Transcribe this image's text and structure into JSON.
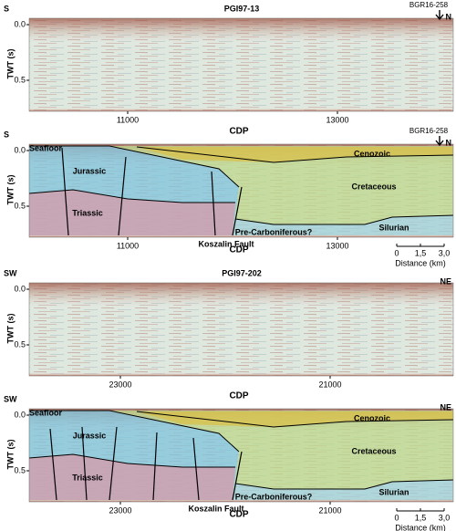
{
  "panels": [
    {
      "left": "S",
      "title": "PGI97-13",
      "right": "N",
      "well": "BGR16-258",
      "y_label": "TWT (s)",
      "y_ticks": [
        "0.0",
        "0.5"
      ],
      "x_ticks": [
        "11000",
        "13000"
      ],
      "x_label": "CDP"
    },
    {
      "left": "S",
      "right": "N",
      "well": "BGR16-258",
      "y_label": "TWT (s)",
      "y_ticks": [
        "0.0",
        "0.5"
      ],
      "x_ticks": [
        "11000",
        "13000"
      ],
      "x_label": "CDP",
      "units": {
        "seafloor": "Seafloor",
        "jurassic": "Jurassic",
        "triassic": "Triassic",
        "cenozoic": "Cenozoic",
        "cretaceous": "Cretaceous",
        "silurian": "Silurian",
        "pre_carboniferous": "Pre-Carboniferous?",
        "fault": "Koszalin Fault"
      },
      "scale_bar": {
        "ticks": [
          "0",
          "1,5",
          "3,0"
        ],
        "label": "Distance (km)"
      }
    },
    {
      "left": "SW",
      "title": "PGI97-202",
      "right": "NE",
      "y_label": "TWT (s)",
      "y_ticks": [
        "0.0",
        "0.5"
      ],
      "x_ticks": [
        "23000",
        "21000"
      ],
      "x_label": "CDP"
    },
    {
      "left": "SW",
      "right": "NE",
      "y_label": "TWT (s)",
      "y_ticks": [
        "0.0",
        "0.5"
      ],
      "x_ticks": [
        "23000",
        "21000"
      ],
      "x_label": "CDP",
      "units": {
        "seafloor": "Seafloor",
        "jurassic": "Jurassic",
        "triassic": "Triassic",
        "cenozoic": "Cenozoic",
        "cretaceous": "Cretaceous",
        "silurian": "Silurian",
        "pre_carboniferous": "Pre-Carboniferous?",
        "fault": "Koszalin Fault"
      },
      "scale_bar": {
        "ticks": [
          "0",
          "1,5",
          "3,0"
        ],
        "label": "Distance (km)"
      }
    }
  ]
}
